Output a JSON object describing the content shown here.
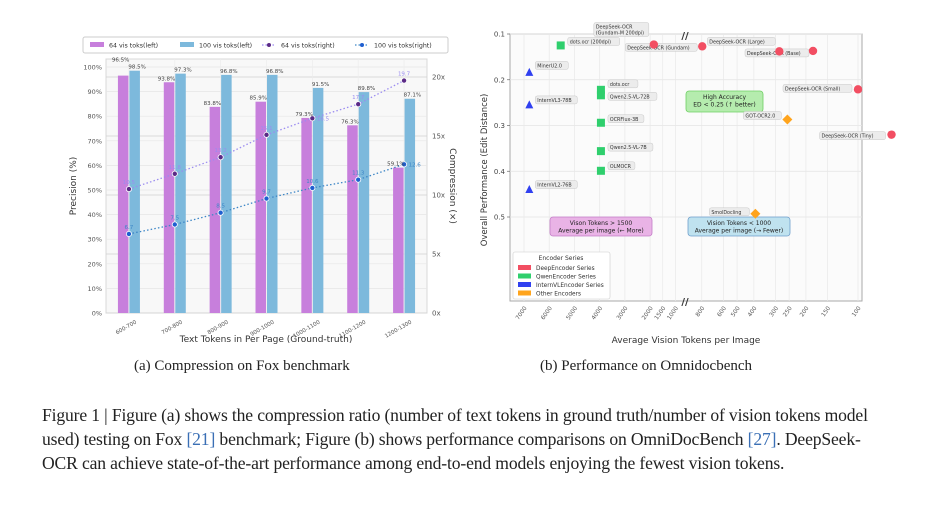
{
  "chart_data": [
    {
      "type": "bar",
      "id": "a",
      "subcaption": "(a) Compression on Fox benchmark",
      "xlabel": "Text Tokens in Per Page (Ground-truth)",
      "ylabel": "Precision (%)",
      "y2label": "Compression (×)",
      "ylim": [
        0,
        100
      ],
      "y2lim": [
        0,
        20
      ],
      "yticks": [
        "0%",
        "10%",
        "20%",
        "30%",
        "40%",
        "50%",
        "60%",
        "70%",
        "80%",
        "90%",
        "100%"
      ],
      "y2ticks": [
        "0x",
        "5x",
        "10x",
        "15x",
        "20x"
      ],
      "grid": true,
      "legend_position": "top",
      "categories": [
        "600-700",
        "700-800",
        "800-900",
        "900-1000",
        "1000-1100",
        "1100-1200",
        "1200-1300"
      ],
      "series": [
        {
          "name": "64 vis toks(left)",
          "kind": "bar",
          "axis": "left",
          "color": "#c77fdc",
          "values": [
            96.5,
            93.8,
            83.8,
            85.9,
            79.3,
            76.3,
            59.1
          ],
          "labels": [
            "96.5%",
            "93.8%",
            "83.8%",
            "85.9%",
            "79.3%",
            "76.3%",
            "59.1%"
          ]
        },
        {
          "name": "100 vis toks(left)",
          "kind": "bar",
          "axis": "left",
          "color": "#7db9dc",
          "values": [
            98.5,
            97.3,
            96.8,
            96.8,
            91.5,
            89.8,
            87.1
          ],
          "labels": [
            "98.5%",
            "97.3%",
            "96.8%",
            "96.8%",
            "91.5%",
            "89.8%",
            "87.1%"
          ]
        },
        {
          "name": "64 vis toks(right)",
          "kind": "line",
          "axis": "right",
          "color": "#5b2a86",
          "line_color": "#9b8cf0",
          "values": [
            10.5,
            11.8,
            13.2,
            15.1,
            16.5,
            17.7,
            19.7
          ],
          "labels": [
            "10.5",
            "11.8",
            "13.2",
            "15.1",
            "16.5",
            "17.7",
            "19.7"
          ]
        },
        {
          "name": "100 vis toks(right)",
          "kind": "line",
          "axis": "right",
          "color": "#1f5fd0",
          "line_color": "#3d86c6",
          "values": [
            6.7,
            7.5,
            8.5,
            9.7,
            10.6,
            11.3,
            12.6
          ],
          "labels": [
            "6.7",
            "7.5",
            "8.5",
            "9.7",
            "10.6",
            "11.3",
            "12.6"
          ]
        }
      ]
    },
    {
      "type": "scatter",
      "id": "b",
      "subcaption": "(b) Performance on Omnidocbench",
      "xlabel": "Average Vision Tokens per Image",
      "ylabel": "Overall Performance (Edit Distance)",
      "ylim": [
        0.1,
        0.6
      ],
      "y_inverted": true,
      "yticks": [
        "0.1",
        "0.2",
        "0.3",
        "0.4",
        "0.5"
      ],
      "x_broken_axis": true,
      "xticks_left": [
        "7000",
        "6000",
        "5000",
        "4000",
        "3000",
        "2000",
        "1500",
        "1000"
      ],
      "xticks_right": [
        "800",
        "600",
        "500",
        "400",
        "300",
        "250",
        "200",
        "150",
        "100"
      ],
      "axis_break_symbol": "//",
      "grid": true,
      "legend": {
        "title": "Encoder Series",
        "position": "lower-left",
        "entries": [
          {
            "name": "DeepEncoder Series",
            "color": "#f24e62"
          },
          {
            "name": "QwenEncoder Series",
            "color": "#2fcf6d"
          },
          {
            "name": "InternVLEncoder Series",
            "color": "#3040f0"
          },
          {
            "name": "Other Encoders",
            "color": "#ffa41c"
          }
        ]
      },
      "annotations": [
        {
          "id": "high-accuracy",
          "lines": [
            "High Accuracy",
            "ED < 0.25 (↑ better)"
          ],
          "bg": "#b5ecae",
          "border": "#6fcf63"
        },
        {
          "id": "vision-more",
          "lines": [
            "Vison Tokens > 1500",
            "Average per image (← More)"
          ],
          "bg": "#e9b3e6",
          "border": "#c47ec8"
        },
        {
          "id": "vision-fewer",
          "lines": [
            "Vision Tokens < 1000",
            "Average per image (→ Fewer)"
          ],
          "bg": "#bfe2ef",
          "border": "#6f9fcc"
        }
      ],
      "points": [
        {
          "label": "DeepSeek-OCR (Gundam-M 200dpi)",
          "tokens": 1853,
          "ed": 0.123,
          "series": "DeepEncoder Series",
          "marker": "circle"
        },
        {
          "label": "DeepSeek-OCR (Gundam)",
          "tokens": 795,
          "ed": 0.127,
          "series": "DeepEncoder Series",
          "marker": "circle"
        },
        {
          "label": "DeepSeek-OCR (Large)",
          "tokens": 285,
          "ed": 0.138,
          "series": "DeepEncoder Series",
          "marker": "circle"
        },
        {
          "label": "DeepSeek-OCR (Base)",
          "tokens": 182,
          "ed": 0.137,
          "series": "DeepEncoder Series",
          "marker": "circle"
        },
        {
          "label": "DeepSeek-OCR (Small)",
          "tokens": 100,
          "ed": 0.221,
          "series": "DeepEncoder Series",
          "marker": "circle"
        },
        {
          "label": "DeepSeek-OCR (Tiny)",
          "tokens": 64,
          "ed": 0.32,
          "series": "DeepEncoder Series",
          "marker": "circle"
        },
        {
          "label": "dots.ocr (200dpi)",
          "tokens": 5545,
          "ed": 0.125,
          "series": "QwenEncoder Series",
          "marker": "square"
        },
        {
          "label": "dots.ocr",
          "tokens": 3950,
          "ed": 0.222,
          "series": "QwenEncoder Series",
          "marker": "square"
        },
        {
          "label": "Qwen2.5-VL-72B",
          "tokens": 3950,
          "ed": 0.234,
          "series": "QwenEncoder Series",
          "marker": "square"
        },
        {
          "label": "OCRFlux-3B",
          "tokens": 3950,
          "ed": 0.294,
          "series": "QwenEncoder Series",
          "marker": "square"
        },
        {
          "label": "Qwen2.5-VL-7B",
          "tokens": 3950,
          "ed": 0.356,
          "series": "QwenEncoder Series",
          "marker": "square"
        },
        {
          "label": "OLMOCR",
          "tokens": 3950,
          "ed": 0.399,
          "series": "QwenEncoder Series",
          "marker": "square"
        },
        {
          "label": "MinerU2.0",
          "tokens": 6790,
          "ed": 0.184,
          "series": "InternVLEncoder Series",
          "marker": "triangle"
        },
        {
          "label": "InternVL3-78B",
          "tokens": 6790,
          "ed": 0.255,
          "series": "InternVLEncoder Series",
          "marker": "triangle"
        },
        {
          "label": "InternVL2-76B",
          "tokens": 6790,
          "ed": 0.44,
          "series": "InternVLEncoder Series",
          "marker": "triangle"
        },
        {
          "label": "GOT-OCR2.0",
          "tokens": 256,
          "ed": 0.287,
          "series": "Other Encoders",
          "marker": "diamond"
        },
        {
          "label": "SmolDocling",
          "tokens": 392,
          "ed": 0.493,
          "series": "Other Encoders",
          "marker": "diamond"
        }
      ]
    }
  ],
  "figure": {
    "caption_prefix": "Figure 1 | ",
    "caption_parts": [
      "Figure (a) shows the compression ratio (number of text tokens in ground truth/number of vision tokens model used) testing on Fox ",
      "[21]",
      " benchmark; Figure (b) shows performance comparisons on OmniDocBench ",
      "[27]",
      ". DeepSeek-OCR can achieve state-of-the-art performance among end-to-end models enjoying the fewest vision tokens."
    ]
  }
}
